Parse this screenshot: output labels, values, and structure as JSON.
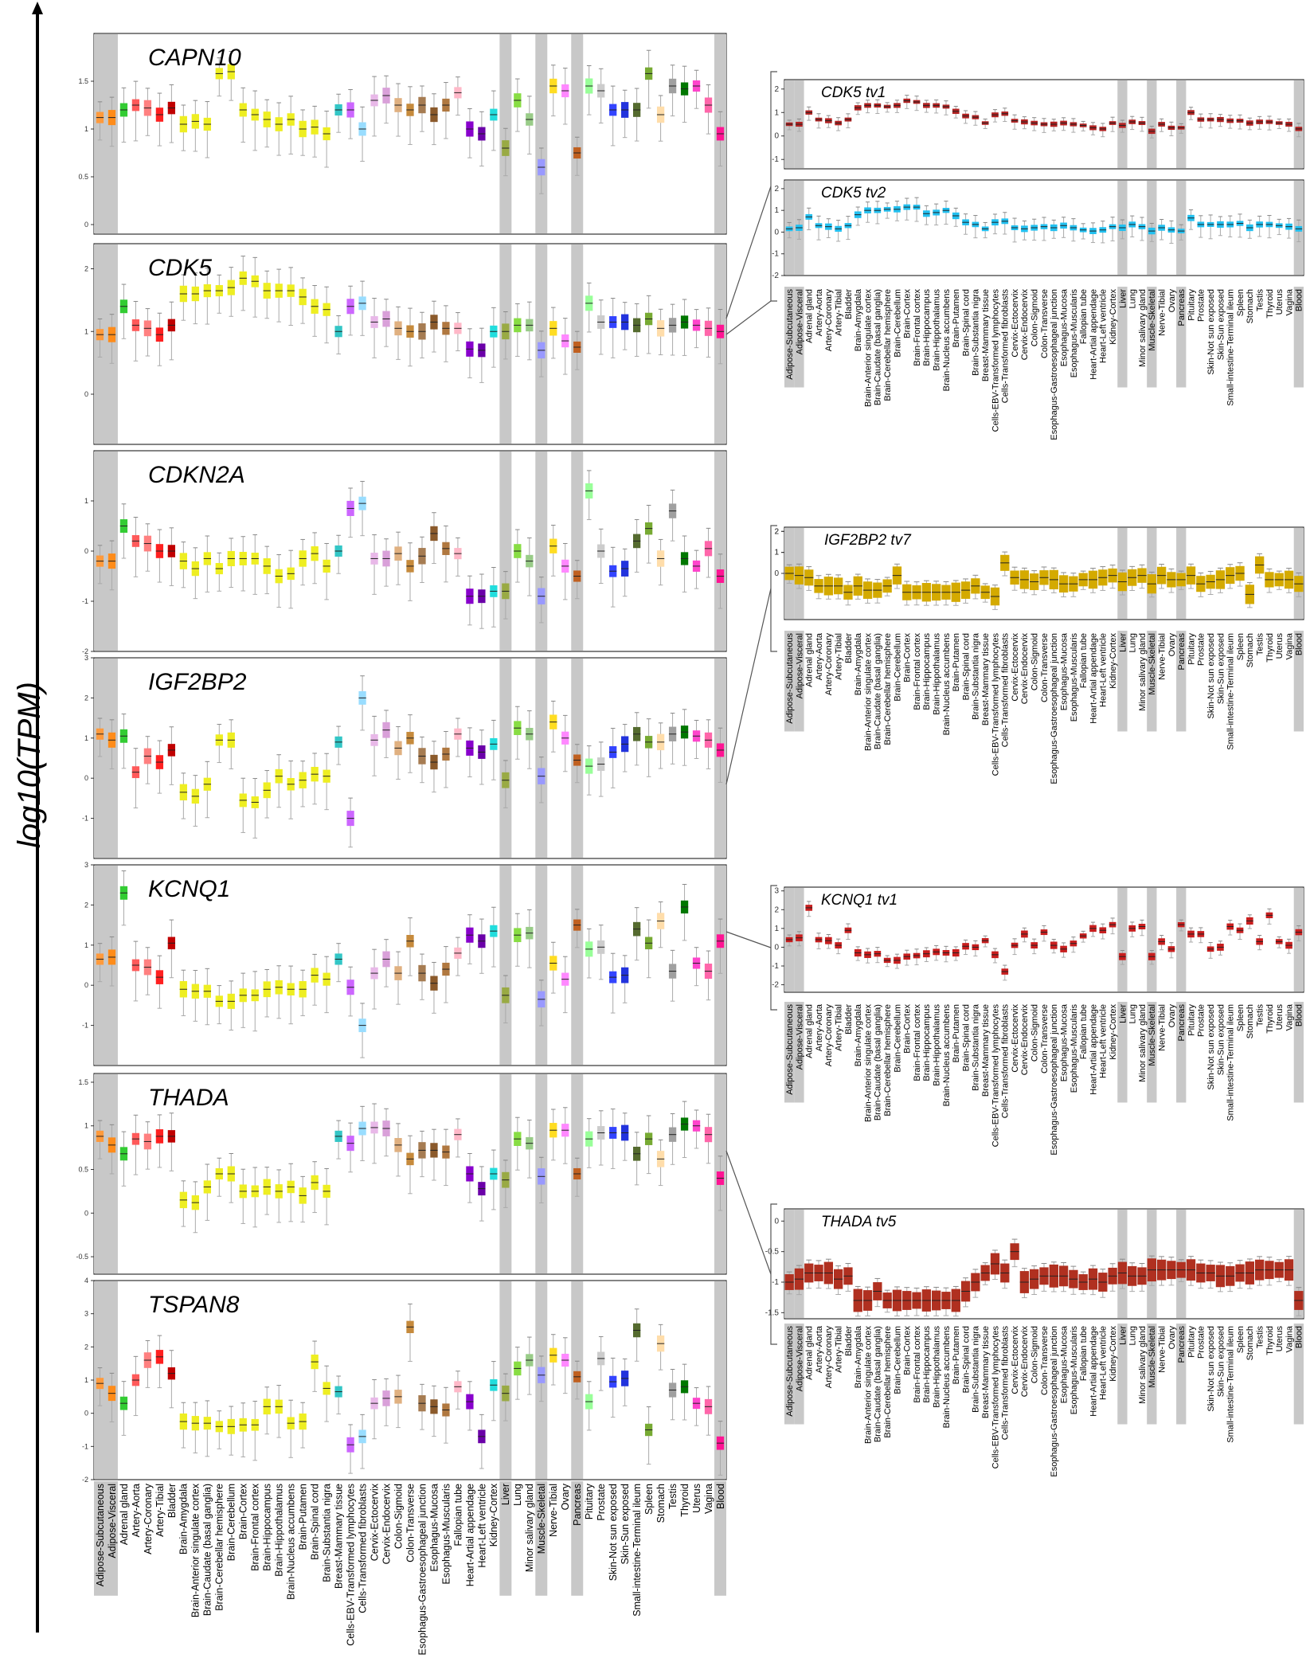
{
  "figure": {
    "y_axis_label": "log10(TPM)"
  },
  "chart_data": {
    "type": "boxplot",
    "tissues": [
      "Adipose-Subcutaneous",
      "Adipose-Visceral",
      "Adrenal gland",
      "Artery-Aorta",
      "Artery-Coronary",
      "Artery-Tibial",
      "Bladder",
      "Brain-Amygdala",
      "Brain-Anterior singulate cortex",
      "Brain-Caudate (basal ganglia)",
      "Brain-Cerebellar hemisphere",
      "Brain-Cerebellum",
      "Brain-Cortex",
      "Brain-Frontal cortex",
      "Brain-Hippocampus",
      "Brain-Hippothalamus",
      "Brain-Nucleus accumbens",
      "Brain-Putamen",
      "Brain-Spinal cord",
      "Brain-Substantia nigra",
      "Breast-Mammary tissue",
      "Cells-EBV-Transformed lymphocytes",
      "Cells-Transformed fibroblasts",
      "Cervix-Ectocervix",
      "Cervix-Endocervix",
      "Colon-Sigmoid",
      "Colon-Transverse",
      "Esophagus-Gastroesophageal junction",
      "Esophagus-Mucosa",
      "Esophagus-Muscularis",
      "Fallopian tube",
      "Heart-Artial appendage",
      "Heart-Left ventricle",
      "Kidney-Cortex",
      "Liver",
      "Lung",
      "Minor salivary gland",
      "Muscle-Skeletal",
      "Nerve-Tibial",
      "Ovary",
      "Pancreas",
      "Pituitary",
      "Prostate",
      "Skin-Not sun exposed",
      "Skin-Sun exposed",
      "Small-intestine-Terminal ileum",
      "Spleen",
      "Stomach",
      "Testis",
      "Thyroid",
      "Uterus",
      "Vagina",
      "Blood"
    ],
    "highlighted_tissues": [
      "Adipose-Subcutaneous",
      "Adipose-Visceral",
      "Liver",
      "Muscle-Skeletal",
      "Pancreas",
      "Blood"
    ],
    "left_panels": [
      {
        "gene": "CAPN10",
        "ylim": [
          -0.1,
          2.0
        ],
        "yticks": [
          0.0,
          0.5,
          1.0,
          1.5
        ],
        "medians": [
          1.12,
          1.12,
          1.2,
          1.25,
          1.22,
          1.15,
          1.22,
          1.05,
          1.08,
          1.05,
          1.58,
          1.6,
          1.2,
          1.15,
          1.1,
          1.05,
          1.1,
          1.0,
          1.02,
          0.95,
          1.2,
          1.2,
          1.0,
          1.3,
          1.35,
          1.25,
          1.2,
          1.25,
          1.15,
          1.25,
          1.38,
          1.0,
          0.95,
          1.15,
          0.8,
          1.3,
          1.1,
          0.6,
          1.45,
          1.4,
          0.75,
          1.45,
          1.4,
          1.2,
          1.2,
          1.2,
          1.58,
          1.15,
          1.45,
          1.42,
          1.45,
          1.25,
          0.95
        ]
      },
      {
        "gene": "CDK5",
        "ylim": [
          -0.8,
          2.4
        ],
        "yticks": [
          0,
          1,
          2
        ],
        "medians": [
          0.95,
          0.95,
          1.4,
          1.1,
          1.05,
          0.95,
          1.1,
          1.6,
          1.6,
          1.65,
          1.65,
          1.7,
          1.85,
          1.8,
          1.65,
          1.65,
          1.65,
          1.55,
          1.4,
          1.35,
          1.0,
          1.4,
          1.45,
          1.15,
          1.2,
          1.05,
          1.0,
          1.0,
          1.15,
          1.05,
          1.05,
          0.72,
          0.7,
          1.0,
          1.0,
          1.1,
          1.1,
          0.7,
          1.05,
          0.85,
          0.75,
          1.45,
          1.15,
          1.15,
          1.15,
          1.1,
          1.2,
          1.05,
          1.1,
          1.15,
          1.1,
          1.05,
          1.0
        ]
      },
      {
        "gene": "CDKN2A",
        "ylim": [
          -2.0,
          2.0
        ],
        "yticks": [
          -2,
          -1,
          0,
          1
        ],
        "medians": [
          -0.2,
          -0.2,
          0.5,
          0.2,
          0.15,
          0.0,
          0.0,
          -0.2,
          -0.35,
          -0.15,
          -0.35,
          -0.15,
          -0.15,
          -0.15,
          -0.3,
          -0.5,
          -0.45,
          -0.15,
          -0.05,
          -0.3,
          0.0,
          0.85,
          0.95,
          -0.15,
          -0.15,
          -0.05,
          -0.3,
          -0.1,
          0.35,
          0.05,
          -0.05,
          -0.9,
          -0.9,
          -0.8,
          -0.8,
          0.0,
          -0.2,
          -0.9,
          0.1,
          -0.3,
          -0.5,
          1.2,
          0.0,
          -0.4,
          -0.35,
          0.2,
          0.45,
          -0.15,
          0.8,
          -0.15,
          -0.3,
          0.05,
          -0.5
        ]
      },
      {
        "gene": "IGF2BP2",
        "ylim": [
          -2.0,
          3.0
        ],
        "yticks": [
          -1,
          0,
          1,
          2,
          3
        ],
        "medians": [
          1.1,
          0.95,
          1.05,
          0.15,
          0.55,
          0.4,
          0.7,
          -0.35,
          -0.45,
          -0.15,
          0.95,
          0.95,
          -0.55,
          -0.6,
          -0.3,
          0.05,
          -0.15,
          -0.05,
          0.1,
          0.05,
          0.9,
          -1.0,
          2.0,
          0.95,
          1.2,
          0.75,
          1.0,
          0.55,
          0.4,
          0.6,
          1.1,
          0.75,
          0.65,
          0.85,
          -0.05,
          1.25,
          1.1,
          0.05,
          1.4,
          1.0,
          0.45,
          0.3,
          0.35,
          0.65,
          0.85,
          1.1,
          0.9,
          0.9,
          1.1,
          1.15,
          1.05,
          0.95,
          0.7
        ]
      },
      {
        "gene": "KCNQ1",
        "ylim": [
          -2.0,
          3.0
        ],
        "yticks": [
          -1,
          0,
          1,
          2,
          3
        ],
        "medians": [
          0.65,
          0.7,
          2.3,
          0.5,
          0.45,
          0.2,
          1.05,
          -0.1,
          -0.15,
          -0.15,
          -0.4,
          -0.4,
          -0.25,
          -0.25,
          -0.1,
          -0.05,
          -0.1,
          -0.1,
          0.25,
          0.15,
          0.65,
          -0.05,
          -1.0,
          0.3,
          0.65,
          0.3,
          1.1,
          0.3,
          0.05,
          0.4,
          0.8,
          1.25,
          1.1,
          1.35,
          -0.25,
          1.25,
          1.3,
          -0.35,
          0.55,
          0.15,
          1.5,
          0.9,
          0.95,
          0.2,
          0.25,
          1.4,
          1.05,
          1.6,
          0.35,
          1.95,
          0.55,
          0.35,
          1.1
        ]
      },
      {
        "gene": "THADA",
        "ylim": [
          -0.7,
          1.6
        ],
        "yticks": [
          -0.5,
          0.0,
          0.5,
          1.0,
          1.5
        ],
        "medians": [
          0.88,
          0.78,
          0.68,
          0.85,
          0.82,
          0.88,
          0.88,
          0.15,
          0.12,
          0.3,
          0.45,
          0.45,
          0.25,
          0.25,
          0.3,
          0.25,
          0.3,
          0.2,
          0.35,
          0.25,
          0.88,
          0.8,
          0.97,
          0.98,
          0.97,
          0.78,
          0.62,
          0.72,
          0.72,
          0.7,
          0.9,
          0.45,
          0.28,
          0.45,
          0.38,
          0.85,
          0.8,
          0.42,
          0.95,
          0.95,
          0.45,
          0.85,
          0.92,
          0.92,
          0.92,
          0.68,
          0.85,
          0.62,
          0.9,
          1.02,
          1.0,
          0.9,
          0.4
        ]
      },
      {
        "gene": "TSPAN8",
        "ylim": [
          -2.0,
          4.0
        ],
        "yticks": [
          -2,
          -1,
          0,
          1,
          2,
          3,
          4
        ],
        "medians": [
          0.9,
          0.6,
          0.3,
          1.0,
          1.6,
          1.7,
          1.2,
          -0.25,
          -0.3,
          -0.3,
          -0.4,
          -0.4,
          -0.35,
          -0.35,
          0.2,
          0.2,
          -0.3,
          -0.25,
          1.55,
          0.75,
          0.65,
          -0.95,
          -0.7,
          0.3,
          0.45,
          0.5,
          2.6,
          0.3,
          0.2,
          0.1,
          0.8,
          0.35,
          -0.7,
          0.85,
          0.6,
          1.35,
          1.6,
          1.15,
          1.75,
          1.6,
          1.1,
          0.35,
          1.65,
          0.95,
          1.05,
          2.5,
          -0.5,
          2.1,
          0.7,
          0.8,
          0.3,
          0.2,
          -0.9
        ]
      }
    ],
    "right_panels": [
      {
        "transcript": "CDK5 tv1",
        "ylim": [
          -1.4,
          2.4
        ],
        "yticks": [
          2,
          1,
          0,
          -1
        ],
        "medians": [
          0.5,
          0.5,
          1.0,
          0.7,
          0.65,
          0.55,
          0.7,
          1.2,
          1.3,
          1.3,
          1.25,
          1.3,
          1.5,
          1.45,
          1.3,
          1.3,
          1.25,
          1.05,
          0.85,
          0.8,
          0.55,
          0.9,
          0.95,
          0.65,
          0.6,
          0.55,
          0.5,
          0.5,
          0.55,
          0.5,
          0.45,
          0.35,
          0.3,
          0.55,
          0.45,
          0.6,
          0.55,
          0.2,
          0.5,
          0.35,
          0.35,
          1.0,
          0.7,
          0.7,
          0.7,
          0.65,
          0.65,
          0.55,
          0.6,
          0.6,
          0.55,
          0.5,
          0.3
        ]
      },
      {
        "transcript": "CDK5 tv2",
        "ylim": [
          -2.0,
          2.4
        ],
        "yticks": [
          2,
          1,
          0,
          -1,
          -2
        ],
        "medians": [
          0.15,
          0.2,
          0.7,
          0.3,
          0.25,
          0.15,
          0.3,
          0.8,
          1.0,
          1.0,
          1.05,
          1.05,
          1.15,
          1.15,
          0.85,
          0.9,
          1.0,
          0.75,
          0.45,
          0.35,
          0.15,
          0.45,
          0.5,
          0.2,
          0.15,
          0.2,
          0.25,
          0.2,
          0.3,
          0.2,
          0.1,
          0.05,
          0.1,
          0.25,
          0.2,
          0.35,
          0.25,
          0.05,
          0.2,
          0.1,
          0.05,
          0.65,
          0.35,
          0.35,
          0.35,
          0.35,
          0.4,
          0.2,
          0.35,
          0.35,
          0.3,
          0.25,
          0.15
        ]
      },
      {
        "transcript": "IGF2BP2 tv7",
        "ylim": [
          -2.2,
          2.2
        ],
        "yticks": [
          2,
          1,
          0,
          1,
          2
        ],
        "medians": [
          0.0,
          -0.1,
          -0.2,
          -0.6,
          -0.6,
          -0.6,
          -0.9,
          -0.6,
          -0.8,
          -0.8,
          -0.6,
          -0.1,
          -0.9,
          -0.9,
          -0.9,
          -0.9,
          -0.9,
          -0.9,
          -0.8,
          -0.6,
          -0.9,
          -1.1,
          0.5,
          -0.2,
          -0.3,
          -0.4,
          -0.2,
          -0.3,
          -0.5,
          -0.5,
          -0.3,
          -0.3,
          -0.2,
          -0.1,
          -0.4,
          -0.2,
          -0.1,
          -0.5,
          -0.1,
          -0.3,
          -0.3,
          -0.1,
          -0.5,
          -0.4,
          -0.3,
          -0.1,
          0.0,
          -1.0,
          0.4,
          -0.3,
          -0.3,
          -0.3,
          -0.5
        ]
      },
      {
        "transcript": "KCNQ1 tv1",
        "ylim": [
          -2.4,
          3.2
        ],
        "yticks": [
          3,
          2,
          1,
          0,
          -1,
          -2
        ],
        "medians": [
          0.4,
          0.5,
          2.1,
          0.4,
          0.35,
          0.1,
          0.9,
          -0.3,
          -0.4,
          -0.35,
          -0.7,
          -0.7,
          -0.5,
          -0.45,
          -0.35,
          -0.25,
          -0.3,
          -0.3,
          0.05,
          0.0,
          0.35,
          -0.4,
          -1.3,
          0.1,
          0.7,
          0.1,
          0.8,
          0.1,
          -0.1,
          0.2,
          0.6,
          1.0,
          0.9,
          1.2,
          -0.5,
          1.0,
          1.1,
          -0.5,
          0.3,
          -0.1,
          1.2,
          0.7,
          0.7,
          -0.1,
          0.0,
          1.1,
          0.9,
          1.4,
          0.3,
          1.7,
          0.3,
          0.1,
          0.8
        ]
      },
      {
        "transcript": "THADA tv5",
        "ylim": [
          -1.6,
          0.2
        ],
        "yticks": [
          0.0,
          -0.5,
          -1.0,
          -1.5
        ],
        "medians": [
          -1.0,
          -0.95,
          -0.85,
          -0.85,
          -0.85,
          -0.95,
          -0.9,
          -1.3,
          -1.3,
          -1.15,
          -1.3,
          -1.3,
          -1.3,
          -1.3,
          -1.3,
          -1.3,
          -1.3,
          -1.3,
          -1.15,
          -1.0,
          -0.85,
          -0.7,
          -0.85,
          -0.5,
          -1.0,
          -0.95,
          -0.9,
          -0.9,
          -0.9,
          -0.95,
          -1.0,
          -0.95,
          -1.0,
          -0.9,
          -0.85,
          -0.9,
          -0.9,
          -0.8,
          -0.8,
          -0.8,
          -0.8,
          -0.8,
          -0.85,
          -0.85,
          -0.9,
          -0.9,
          -0.85,
          -0.85,
          -0.8,
          -0.8,
          -0.8,
          -0.8,
          -1.3
        ]
      }
    ],
    "colors": {
      "tissues": [
        "#ff9a3c",
        "#ff8c1a",
        "#33cc33",
        "#ff5a5a",
        "#ff8080",
        "#ff2020",
        "#c00000",
        "#eeee22",
        "#eeee22",
        "#eeee22",
        "#eeee22",
        "#eeee22",
        "#eeee22",
        "#eeee22",
        "#eeee22",
        "#eeee22",
        "#eeee22",
        "#eeee22",
        "#eeee22",
        "#eeee22",
        "#33c6c6",
        "#cc66ff",
        "#99ddff",
        "#e8b8e8",
        "#d9a0d9",
        "#e0b080",
        "#c68a3c",
        "#a67c52",
        "#8b5a2b",
        "#b07840",
        "#ffb8c8",
        "#8800cc",
        "#6a00a8",
        "#22dddd",
        "#99aa44",
        "#88dd44",
        "#99cc88",
        "#9999ff",
        "#ffdd22",
        "#ff88ff",
        "#c06020",
        "#99ff99",
        "#cccccc",
        "#3344ff",
        "#2233dd",
        "#556b2f",
        "#77aa33",
        "#ffddaa",
        "#a0a0a0",
        "#007700",
        "#ff44cc",
        "#ff66aa",
        "#ff1493"
      ],
      "right_tv1": "#b22222",
      "right_tv2": "#22c0f0",
      "right_igf2bp2": "#d4aa00",
      "right_kcnq1": "#c81e1e",
      "right_thada": "#b03020"
    }
  }
}
